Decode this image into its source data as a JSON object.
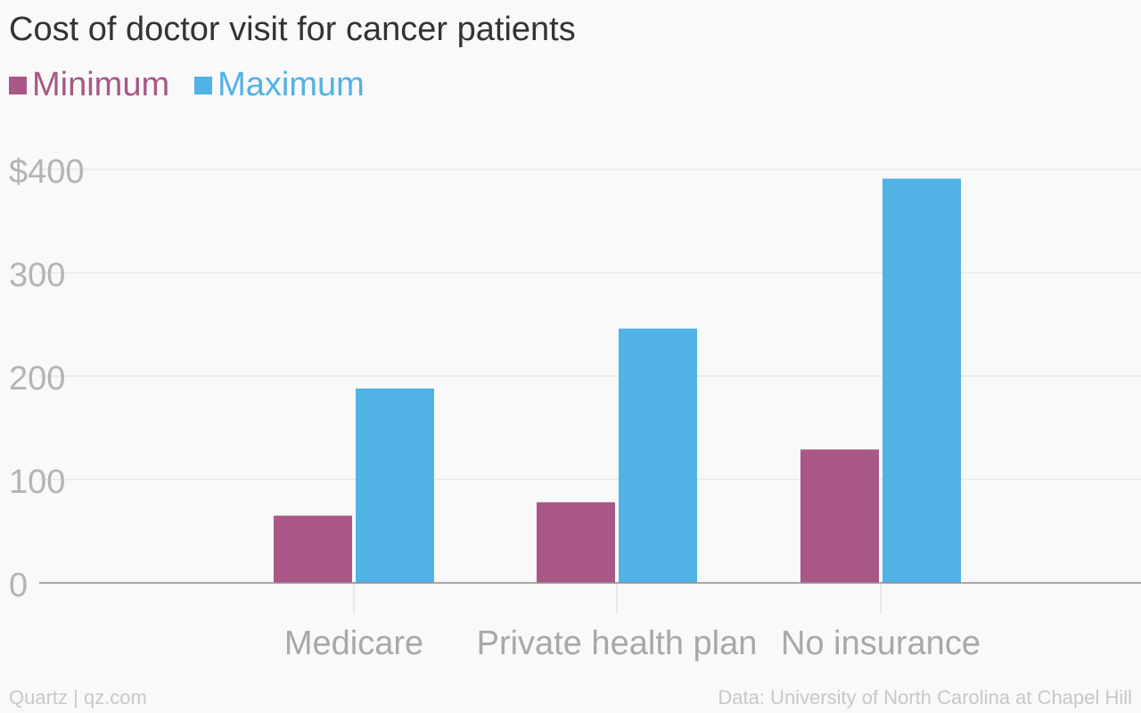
{
  "chart_data": {
    "type": "bar",
    "title": "Cost of doctor visit for cancer patients",
    "categories": [
      "Medicare",
      "Private health plan",
      "No insurance"
    ],
    "series": [
      {
        "name": "Minimum",
        "color": "#a85786",
        "values": [
          65,
          78,
          129
        ]
      },
      {
        "name": "Maximum",
        "color": "#51b2e5",
        "values": [
          188,
          246,
          391
        ]
      }
    ],
    "yticks": [
      "0",
      "100",
      "200",
      "300",
      "$400"
    ],
    "ylim": [
      0,
      400
    ],
    "grid": true,
    "legend_position": "top-left",
    "xlabel": "",
    "ylabel": ""
  },
  "footer": {
    "left": "Quartz | qz.com",
    "right": "Data: University of North Carolina at Chapel Hill"
  }
}
